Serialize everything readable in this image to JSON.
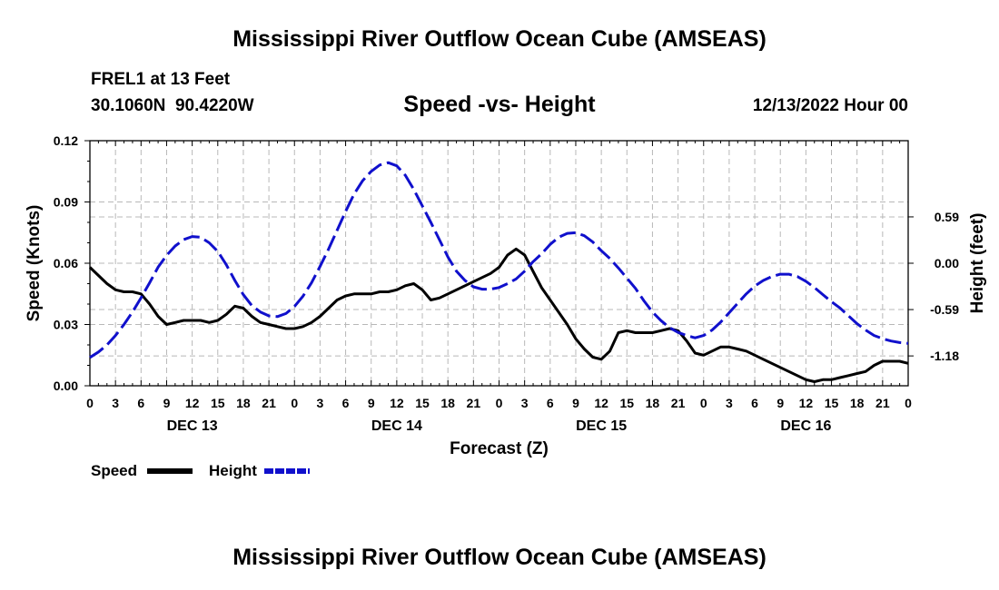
{
  "header": {
    "title": "Mississippi River Outflow Ocean Cube (AMSEAS)",
    "station": "FREL1 at 13 Feet",
    "coords": "30.1060N  90.4220W",
    "subtitle": "Speed -vs- Height",
    "datetime": "12/13/2022 Hour 00"
  },
  "legend": {
    "speed_label": "Speed",
    "height_label": "Height"
  },
  "footer": {
    "title": "Mississippi River Outflow Ocean Cube (AMSEAS)"
  },
  "chart_data": {
    "type": "line",
    "title": "Speed -vs- Height",
    "xlabel": "Forecast (Z)",
    "ylabel": "Speed (Knots)",
    "y2label": "Height (feet)",
    "x_range_hours": [
      0,
      96
    ],
    "ylim": [
      0,
      0.12
    ],
    "y2lim": [
      -1.56,
      1.56
    ],
    "y_ticks": [
      0,
      0.03,
      0.06,
      0.09,
      0.12
    ],
    "y_tick_labels": [
      "0.00",
      "0.03",
      "0.06",
      "0.09",
      "0.12"
    ],
    "y2_ticks": [
      -1.18,
      -0.59,
      0,
      0.59
    ],
    "y2_tick_labels": [
      "-1.18",
      "-0.59",
      "0.00",
      "0.59"
    ],
    "x_ticks": [
      0,
      3,
      6,
      9,
      12,
      15,
      18,
      21,
      24,
      27,
      30,
      33,
      36,
      39,
      42,
      45,
      48,
      51,
      54,
      57,
      60,
      63,
      66,
      69,
      72,
      75,
      78,
      81,
      84,
      87,
      90,
      93,
      96
    ],
    "x_tick_labels": [
      "0",
      "3",
      "6",
      "9",
      "12",
      "15",
      "18",
      "21",
      "0",
      "3",
      "6",
      "9",
      "12",
      "15",
      "18",
      "21",
      "0",
      "3",
      "6",
      "9",
      "12",
      "15",
      "18",
      "21",
      "0",
      "3",
      "6",
      "9",
      "12",
      "15",
      "18",
      "21",
      "0"
    ],
    "day_labels": [
      {
        "hour": 12,
        "label": "DEC 13"
      },
      {
        "hour": 36,
        "label": "DEC 14"
      },
      {
        "hour": 60,
        "label": "DEC 15"
      },
      {
        "hour": 84,
        "label": "DEC 16"
      }
    ],
    "grid": true,
    "series": [
      {
        "name": "Speed",
        "axis": "left",
        "color": "#000000",
        "style": "solid",
        "x": [
          0,
          2,
          3,
          4,
          5,
          6,
          7,
          8,
          9,
          10,
          11,
          12,
          13,
          14,
          15,
          16,
          17,
          18,
          19,
          20,
          21,
          22,
          23,
          24,
          25,
          26,
          27,
          28,
          29,
          30,
          31,
          32,
          33,
          34,
          35,
          36,
          37,
          38,
          39,
          40,
          41,
          42,
          43,
          44,
          45,
          46,
          47,
          48,
          49,
          50,
          51,
          52,
          53,
          54,
          55,
          56,
          57,
          58,
          59,
          60,
          61,
          62,
          63,
          64,
          65,
          66,
          67,
          68,
          69,
          70,
          71,
          72,
          73,
          74,
          75,
          76,
          77,
          78,
          79,
          80,
          81,
          82,
          83,
          84,
          85,
          86,
          87,
          88,
          89,
          90,
          91,
          92,
          93,
          94,
          95,
          96
        ],
        "values": [
          0.058,
          0.05,
          0.047,
          0.046,
          0.046,
          0.045,
          0.04,
          0.034,
          0.03,
          0.031,
          0.032,
          0.032,
          0.032,
          0.031,
          0.032,
          0.035,
          0.039,
          0.038,
          0.034,
          0.031,
          0.03,
          0.029,
          0.028,
          0.028,
          0.029,
          0.031,
          0.034,
          0.038,
          0.042,
          0.044,
          0.045,
          0.045,
          0.045,
          0.046,
          0.046,
          0.047,
          0.049,
          0.05,
          0.047,
          0.042,
          0.043,
          0.045,
          0.047,
          0.049,
          0.051,
          0.053,
          0.055,
          0.058,
          0.064,
          0.067,
          0.064,
          0.056,
          0.048,
          0.042,
          0.036,
          0.03,
          0.023,
          0.018,
          0.014,
          0.013,
          0.017,
          0.026,
          0.027,
          0.026,
          0.026,
          0.026,
          0.027,
          0.028,
          0.027,
          0.022,
          0.016,
          0.015,
          0.017,
          0.019,
          0.019,
          0.018,
          0.017,
          0.015,
          0.013,
          0.011,
          0.009,
          0.007,
          0.005,
          0.003,
          0.002,
          0.003,
          0.003,
          0.004,
          0.005,
          0.006,
          0.007,
          0.01,
          0.012,
          0.012,
          0.012,
          0.011
        ]
      },
      {
        "name": "Height",
        "axis": "right",
        "color": "#1010cc",
        "style": "dashed",
        "x": [
          0,
          1,
          2,
          3,
          4,
          5,
          6,
          7,
          8,
          9,
          10,
          11,
          12,
          13,
          14,
          15,
          16,
          17,
          18,
          19,
          20,
          21,
          22,
          23,
          24,
          25,
          26,
          27,
          28,
          29,
          30,
          31,
          32,
          33,
          34,
          35,
          36,
          37,
          38,
          39,
          40,
          41,
          42,
          43,
          44,
          45,
          46,
          47,
          48,
          49,
          50,
          51,
          52,
          53,
          54,
          55,
          56,
          57,
          58,
          59,
          60,
          61,
          62,
          63,
          64,
          65,
          66,
          67,
          68,
          69,
          70,
          71,
          72,
          73,
          74,
          75,
          76,
          77,
          78,
          79,
          80,
          81,
          82,
          83,
          84,
          85,
          86,
          87,
          88,
          89,
          90,
          91,
          92,
          93,
          94,
          95,
          96
        ],
        "values": [
          -1.2,
          -1.13,
          -1.04,
          -0.92,
          -0.78,
          -0.62,
          -0.44,
          -0.25,
          -0.05,
          0.1,
          0.22,
          0.3,
          0.34,
          0.33,
          0.26,
          0.15,
          -0.02,
          -0.22,
          -0.4,
          -0.54,
          -0.62,
          -0.67,
          -0.68,
          -0.64,
          -0.55,
          -0.42,
          -0.25,
          -0.04,
          0.18,
          0.42,
          0.66,
          0.88,
          1.05,
          1.17,
          1.25,
          1.28,
          1.24,
          1.12,
          0.94,
          0.73,
          0.52,
          0.3,
          0.08,
          -0.1,
          -0.22,
          -0.3,
          -0.33,
          -0.33,
          -0.31,
          -0.26,
          -0.2,
          -0.1,
          0.02,
          0.12,
          0.24,
          0.33,
          0.38,
          0.39,
          0.35,
          0.27,
          0.16,
          0.06,
          -0.06,
          -0.19,
          -0.32,
          -0.48,
          -0.62,
          -0.73,
          -0.82,
          -0.88,
          -0.92,
          -0.95,
          -0.92,
          -0.85,
          -0.75,
          -0.63,
          -0.51,
          -0.39,
          -0.29,
          -0.22,
          -0.17,
          -0.14,
          -0.14,
          -0.17,
          -0.23,
          -0.31,
          -0.4,
          -0.49,
          -0.57,
          -0.67,
          -0.77,
          -0.85,
          -0.92,
          -0.96,
          -0.99,
          -1.01,
          -1.02
        ]
      }
    ]
  }
}
